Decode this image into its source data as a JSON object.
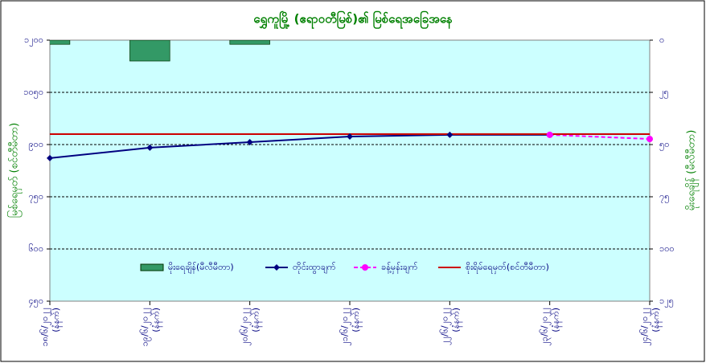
{
  "chart_data": {
    "type": "combo",
    "title": "ရွှေကူမြို့ (ဧရာဝတီမြစ်)၏ မြစ်ရေအခြေအနေ",
    "y_label": "မြစ်ရေမှတ် (စင်တီမီတာ)",
    "y2_label": "မိုးရေချိန် (မီလီမီတာ)",
    "categories": [
      "၁၈/၆/၂၀၂၂",
      "၁၉/၆/၂၀၂၂",
      "၂၀/၆/၂၀၂၂",
      "၂၁/၆/၂၀၂၂",
      "၂၂/၆/၂၀၂၂",
      "၂၃/၆/၂၀၂၂",
      "၂၄/၆/၂၀၂၂"
    ],
    "category_notes": [
      "(နံနက်)",
      "(နံနက်)",
      "(နံနက်)",
      "(နံနက်)",
      "(နံနက်)",
      "(နံနက်)",
      "(နံနက်)"
    ],
    "ylim": [
      450,
      1200
    ],
    "yticks": [
      {
        "value": 450,
        "label": "၄၅၀"
      },
      {
        "value": 600,
        "label": "၆၀၀"
      },
      {
        "value": 750,
        "label": "၇၅၀"
      },
      {
        "value": 900,
        "label": "၉၀၀"
      },
      {
        "value": 1050,
        "label": "၁၀၅၀"
      },
      {
        "value": 1200,
        "label": "၁၂၀၀"
      }
    ],
    "y2lim": [
      125,
      0
    ],
    "y2ticks": [
      {
        "value": 0,
        "label": "၀"
      },
      {
        "value": 25,
        "label": "၂၅"
      },
      {
        "value": 50,
        "label": "၅၀"
      },
      {
        "value": 75,
        "label": "၇၅"
      },
      {
        "value": 100,
        "label": "၁၀၀"
      },
      {
        "value": 125,
        "label": "၁၂၅"
      }
    ],
    "grid": true,
    "series": [
      {
        "name": "မိုးရေချိန်(မီလီမီတာ)",
        "type": "bar",
        "axis": "y2",
        "color": "#339966",
        "values": [
          2,
          10,
          2,
          0,
          0,
          0,
          0
        ]
      },
      {
        "name": "တိုင်းထွာချက်",
        "type": "line",
        "color": "#000080",
        "values": [
          861,
          891,
          907,
          923,
          928,
          928,
          null
        ]
      },
      {
        "name": "ခန့်မှန်းချက်",
        "type": "line",
        "dashed": true,
        "color": "#ff00ff",
        "values": [
          null,
          null,
          null,
          null,
          null,
          928,
          916
        ]
      },
      {
        "name": "စိုးရိမ်ရေမှတ်(စင်တီမီတာ)",
        "type": "hline",
        "color": "#cc0000",
        "value": 930
      }
    ]
  }
}
